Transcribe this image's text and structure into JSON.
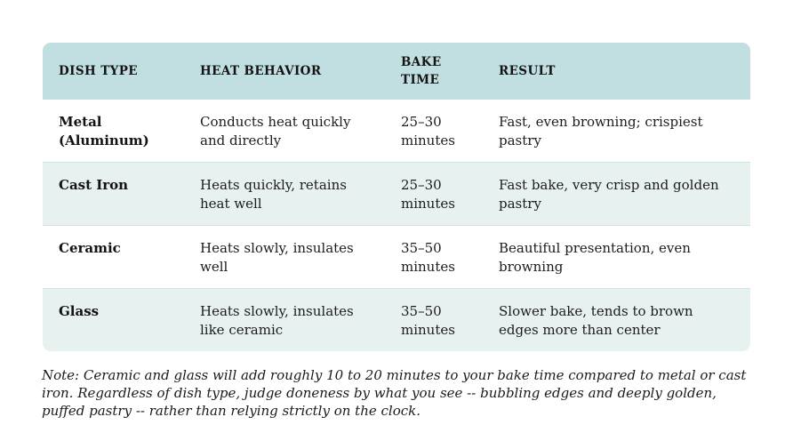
{
  "table": {
    "columns": [
      {
        "label": "DISH TYPE"
      },
      {
        "label": "HEAT BEHAVIOR"
      },
      {
        "label": "BAKE TIME"
      },
      {
        "label": "RESULT"
      }
    ],
    "rows": [
      {
        "dish": "Metal (Aluminum)",
        "behavior": "Conducts heat quickly and directly",
        "time": "25–30 minutes",
        "result": "Fast, even browning; crispiest pastry"
      },
      {
        "dish": "Cast Iron",
        "behavior": "Heats quickly, retains heat well",
        "time": "25–30 minutes",
        "result": "Fast bake, very crisp and golden pastry"
      },
      {
        "dish": "Ceramic",
        "behavior": "Heats slowly, insulates well",
        "time": "35–50 minutes",
        "result": "Beautiful presentation, even browning"
      },
      {
        "dish": "Glass",
        "behavior": "Heats slowly, insulates like ceramic",
        "time": "35–50 minutes",
        "result": "Slower bake, tends to brown edges more than center"
      }
    ]
  },
  "note": "Note: Ceramic and glass will add roughly 10 to 20 minutes to your bake time compared to metal or cast iron. Regardless of dish type, judge doneness by what you see -- bubbling edges and deeply golden, puffed pastry -- rather than relying strictly on the clock.",
  "colors": {
    "header_bg": "#c1dfe0",
    "row_alt_bg": "#e7f1f0",
    "divider": "#cfe3e3",
    "text": "#161616"
  }
}
